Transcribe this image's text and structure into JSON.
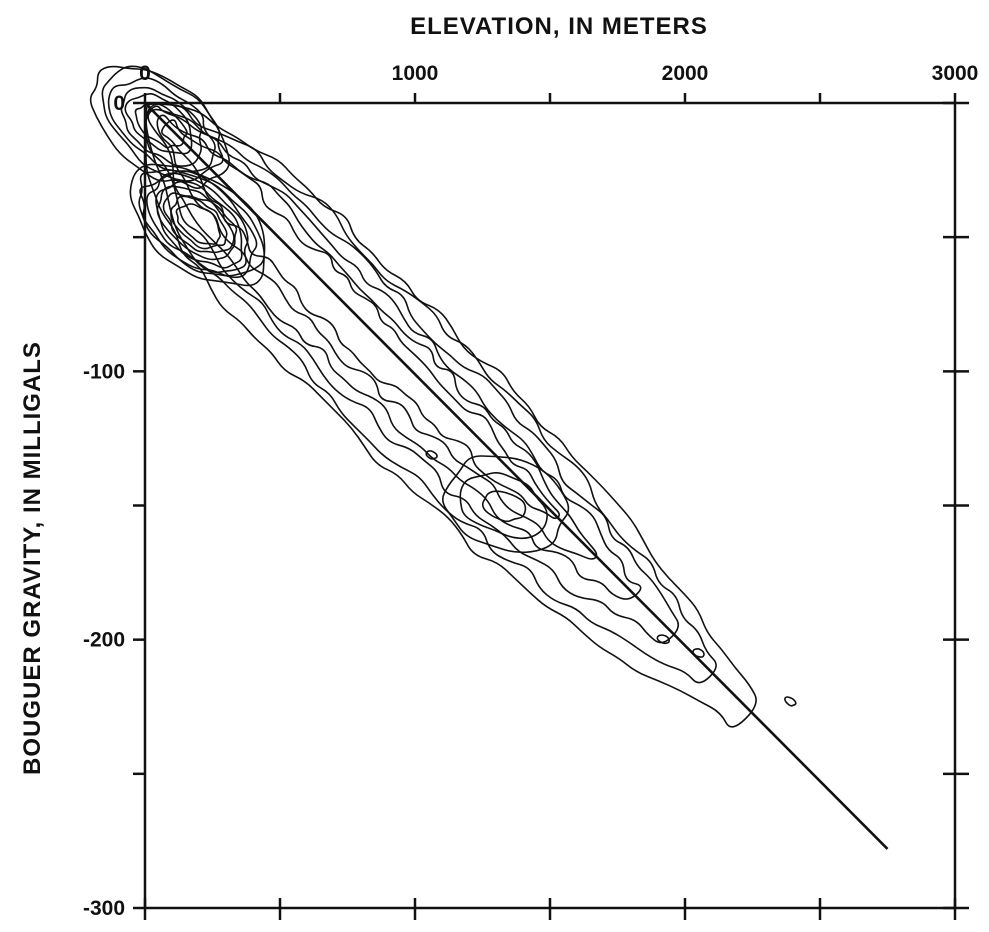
{
  "chart_data": {
    "type": "contour",
    "title": "",
    "xlabel": "ELEVATION, IN METERS",
    "ylabel": "BOUGUER GRAVITY, IN MILLIGALS",
    "xlim": [
      0,
      3000
    ],
    "ylim": [
      -300,
      0
    ],
    "x_axis_position": "top",
    "y_axis_position": "left",
    "x_ticks": [
      {
        "value": 0,
        "label": "0"
      },
      {
        "value": 500,
        "label": ""
      },
      {
        "value": 1000,
        "label": "1000"
      },
      {
        "value": 1500,
        "label": ""
      },
      {
        "value": 2000,
        "label": "2000"
      },
      {
        "value": 2500,
        "label": ""
      },
      {
        "value": 3000,
        "label": "3000"
      }
    ],
    "y_ticks": [
      {
        "value": 0,
        "label": "0"
      },
      {
        "value": -50,
        "label": ""
      },
      {
        "value": -100,
        "label": "-100"
      },
      {
        "value": -150,
        "label": ""
      },
      {
        "value": -200,
        "label": "-200"
      },
      {
        "value": -250,
        "label": ""
      },
      {
        "value": -300,
        "label": "-300"
      }
    ],
    "grid": false,
    "legend": "none",
    "regression_line": {
      "x": [
        0,
        2750
      ],
      "y": [
        0,
        -278
      ]
    },
    "contour_groups": [
      {
        "kind": "envelope",
        "count": 6
      },
      {
        "kind": "core-high-density",
        "center": [
          200,
          -45
        ],
        "count": 9
      },
      {
        "kind": "core-high-density",
        "center": [
          60,
          -8
        ],
        "count": 6
      },
      {
        "kind": "secondary-peak",
        "center": [
          1330,
          -150
        ],
        "count": 3
      },
      {
        "kind": "island",
        "center": [
          1060,
          -131
        ],
        "count": 1
      },
      {
        "kind": "island",
        "center": [
          1920,
          -200
        ],
        "count": 1
      },
      {
        "kind": "island",
        "center": [
          2050,
          -205
        ],
        "count": 1
      },
      {
        "kind": "island",
        "center": [
          2390,
          -223
        ],
        "count": 1
      }
    ]
  }
}
